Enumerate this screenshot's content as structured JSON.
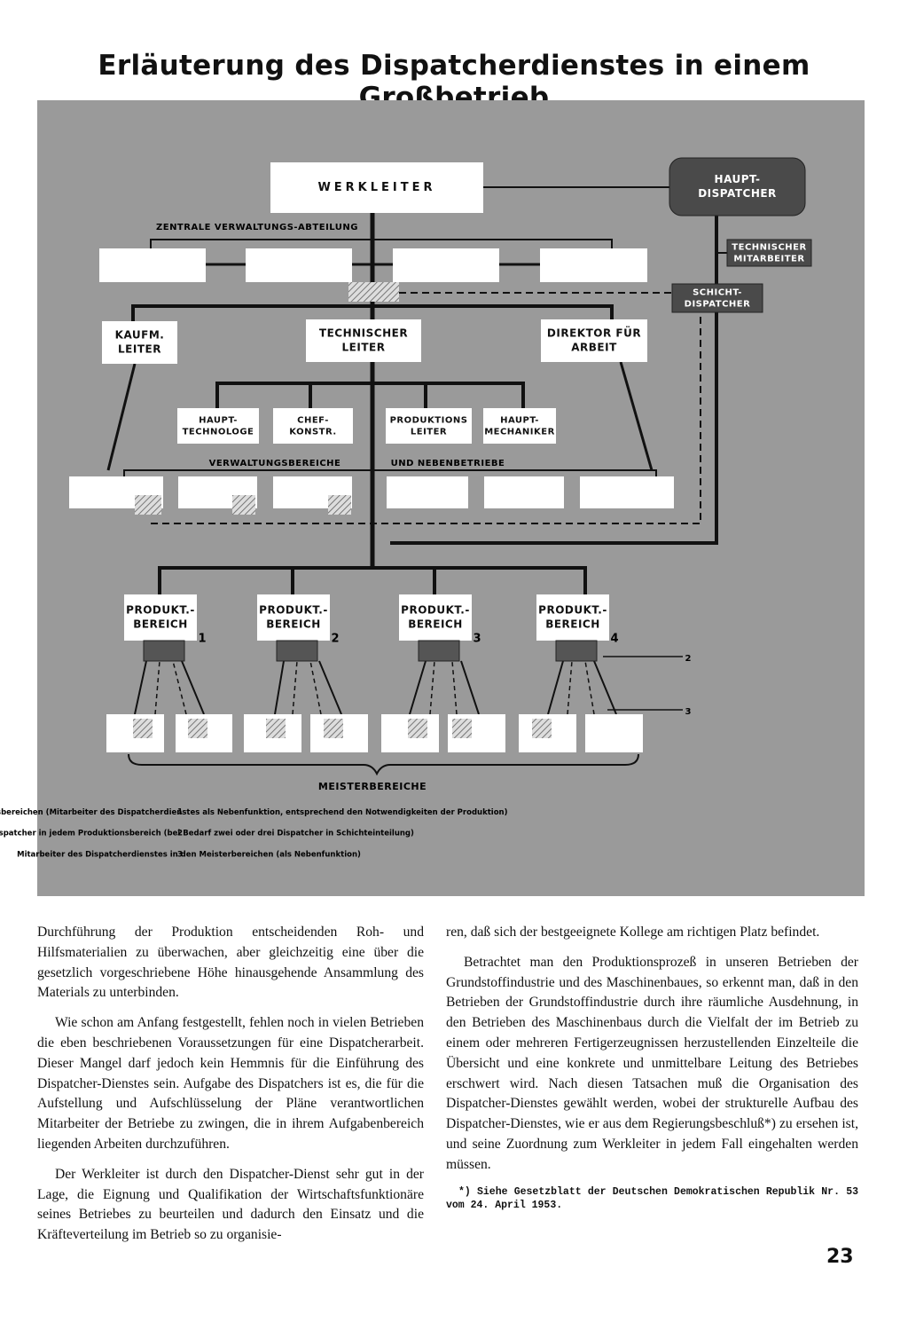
{
  "header": {
    "title": "Erläuterung des Dispatcherdienstes in einem Großbetrieb"
  },
  "diagram": {
    "nodes": [
      {
        "label": [
          "WERKLEITER"
        ]
      },
      {
        "label": [
          "HAUPT-",
          "DISPATCHER"
        ]
      },
      {
        "label": [
          "TECHNISCHER",
          "MITARBEITER"
        ]
      },
      {
        "label": [
          "SCHICHT-",
          "DISPATCHER"
        ]
      },
      {
        "label": [
          "KAUFM.",
          "LEITER"
        ]
      },
      {
        "label": [
          "TECHNISCHER",
          "LEITER"
        ]
      },
      {
        "label": [
          "DIREKTOR FÜR",
          "ARBEIT"
        ]
      },
      {
        "label": [
          "HAUPT-",
          "TECHNOLOGE"
        ]
      },
      {
        "label": [
          "CHEF-",
          "KONSTR."
        ]
      },
      {
        "label": [
          "PRODUKTIONS",
          "LEITER"
        ]
      },
      {
        "label": [
          "HAUPT-",
          "MECHANIKER"
        ]
      }
    ],
    "production_areas": [
      {
        "label": [
          "PRODUKT.-",
          "BEREICH"
        ],
        "number": "1"
      },
      {
        "label": [
          "PRODUKT.-",
          "BEREICH"
        ],
        "number": "2"
      },
      {
        "label": [
          "PRODUKT.-",
          "BEREICH"
        ],
        "number": "3"
      },
      {
        "label": [
          "PRODUKT.-",
          "BEREICH"
        ],
        "number": "4"
      }
    ],
    "group_labels": [
      "ZENTRALE VERWALTUNGS-ABTEILUNG",
      "VERWALTUNGSBEREICHE",
      "UND NEBENBETRIEBE",
      "MEISTERBEREICHE"
    ],
    "arrow_markers": [
      "2",
      "3"
    ],
    "legend": [
      {
        "number": "1",
        "text": "Dispatcher in den Verwaltungsbereichen (Mitarbeiter des Dispatcherdienstes als Nebenfunktion, entsprechend den Notwendigkeiten der Produktion)"
      },
      {
        "number": "2",
        "text": "Je ein Dispatcher in jedem Produktionsbereich (bei Bedarf zwei oder drei Dispatcher in Schichteinteilung)"
      },
      {
        "number": "3",
        "text": "Mitarbeiter des Dispatcherdienstes in den Meisterbereichen (als Nebenfunktion)"
      }
    ]
  },
  "body": {
    "left": [
      "Durchführung der Produktion entscheidenden Roh- und Hilfsmaterialien zu überwachen, aber gleichzeitig eine über die gesetzlich vorgeschriebene Höhe hinausgehende Ansammlung des Materials zu unterbinden.",
      "Wie schon am Anfang festgestellt, fehlen noch in vielen Betrieben die eben beschriebenen Voraussetzungen für eine Dispatcherarbeit. Dieser Mangel darf jedoch kein Hemmnis für die Einführung des Dispatcher-Dienstes sein. Aufgabe des Dispatchers ist es, die für die Aufstellung und Aufschlüsselung der Pläne verantwortlichen Mitarbeiter der Betriebe zu zwingen, die in ihrem Aufgabenbereich liegenden Arbeiten durchzuführen.",
      "Der Werkleiter ist durch den Dispatcher-Dienst sehr gut in der Lage, die Eignung und Qualifikation der Wirtschaftsfunktionäre seines Betriebes zu beurteilen und dadurch den Einsatz und die Kräfteverteilung im Betrieb so zu organisie-"
    ],
    "right": [
      "ren, daß sich der bestgeeignete Kollege am richtigen Platz befindet.",
      "Betrachtet man den Produktionsprozeß in unseren Betrieben der Grundstoffindustrie und des Maschinenbaues, so erkennt man, daß in den Betrieben der Grundstoffindustrie durch ihre räumliche Ausdehnung, in den Betrieben des Maschinenbaus durch die Vielfalt der im Betrieb zu einem oder mehreren Fertigerzeugnissen herzustellenden Einzelteile die Übersicht und eine konkrete und unmittelbare Leitung des Betriebes erschwert wird. Nach diesen Tatsachen muß die Organisation des Dispatcher-Dienstes gewählt werden, wobei der strukturelle Aufbau des Dispatcher-Dienstes, wie er aus dem Regierungsbeschluß*) zu ersehen ist, und seine Zuordnung zum Werkleiter in jedem Fall eingehalten werden müssen."
    ],
    "footnote": "*) Siehe Gesetzblatt der Deutschen Demokratischen Republik Nr. 53 vom 24. April 1953."
  },
  "page_number": "23"
}
